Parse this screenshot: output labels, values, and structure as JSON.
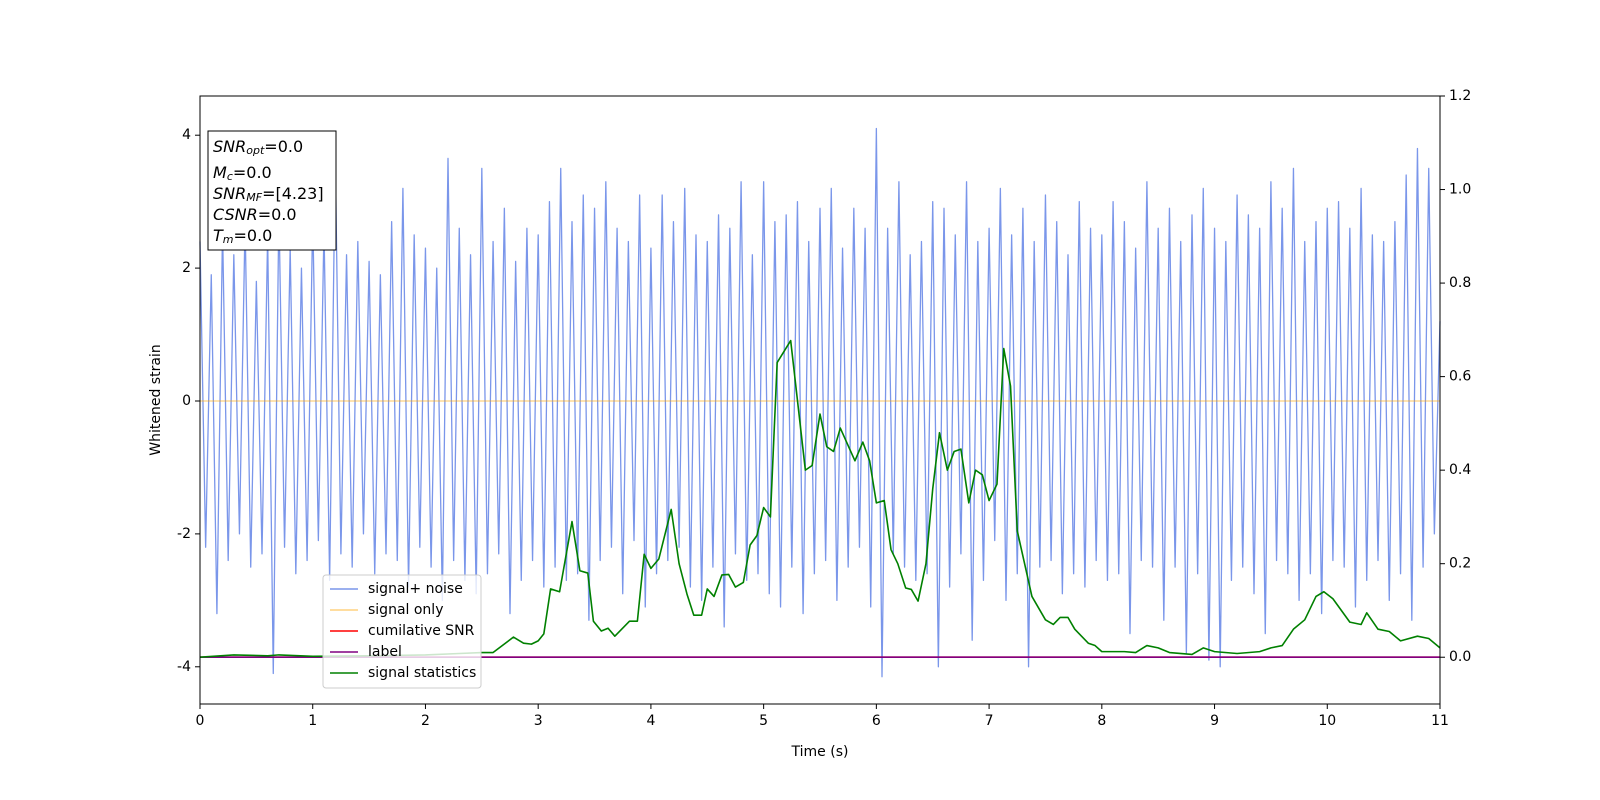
{
  "chart_data": {
    "type": "line",
    "xlabel": "Time (s)",
    "ylabel": "Whitened strain",
    "xlim": [
      0,
      11
    ],
    "xticks": [
      0,
      1,
      2,
      3,
      4,
      5,
      6,
      7,
      8,
      9,
      10,
      11
    ],
    "ylim": [
      -4.56,
      4.59
    ],
    "yticks": [
      -4,
      -2,
      0,
      2,
      4
    ],
    "y2lim": [
      -0.1,
      1.2
    ],
    "y2ticks": [
      {
        "value": 0,
        "label": "0.0"
      },
      0.2,
      0.4,
      0.6,
      0.8,
      {
        "value": 1,
        "label": "1.0"
      },
      1.2
    ],
    "legend": "lower left",
    "annotations": [
      {
        "base": "SNR",
        "sub": "opt",
        "text": "=0.0"
      },
      {
        "base": "M",
        "sub": "c",
        "text": "=0.0"
      },
      {
        "base": "SNR",
        "sub": "MF",
        "text": "=[4.23]"
      },
      {
        "base": "CSNR",
        "text": "=0.0"
      },
      {
        "base": "T",
        "sub": "m",
        "text": "=0.0"
      }
    ],
    "series": [
      {
        "name": "signal+ noise",
        "color": "#4169e1",
        "alpha": 0.7,
        "x": [
          0,
          0.05,
          0.1,
          0.15,
          0.2,
          0.25,
          0.3,
          0.35,
          0.4,
          0.45,
          0.5,
          0.55,
          0.6,
          0.65,
          0.7,
          0.75,
          0.8,
          0.85,
          0.9,
          0.95,
          1,
          1.05,
          1.1,
          1.15,
          1.2,
          1.25,
          1.3,
          1.35,
          1.4,
          1.45,
          1.5,
          1.55,
          1.6,
          1.65,
          1.7,
          1.75,
          1.8,
          1.85,
          1.9,
          1.95,
          2,
          2.05,
          2.1,
          2.15,
          2.2,
          2.25,
          2.3,
          2.35,
          2.4,
          2.45,
          2.5,
          2.55,
          2.6,
          2.65,
          2.7,
          2.75,
          2.8,
          2.85,
          2.9,
          2.95,
          3,
          3.05,
          3.1,
          3.15,
          3.2,
          3.25,
          3.3,
          3.35,
          3.4,
          3.45,
          3.5,
          3.55,
          3.6,
          3.65,
          3.7,
          3.75,
          3.8,
          3.85,
          3.9,
          3.95,
          4,
          4.05,
          4.1,
          4.15,
          4.2,
          4.25,
          4.3,
          4.35,
          4.4,
          4.45,
          4.5,
          4.55,
          4.6,
          4.65,
          4.7,
          4.75,
          4.8,
          4.85,
          4.9,
          4.95,
          5,
          5.05,
          5.1,
          5.15,
          5.2,
          5.25,
          5.3,
          5.35,
          5.4,
          5.45,
          5.5,
          5.55,
          5.6,
          5.65,
          5.7,
          5.75,
          5.8,
          5.85,
          5.9,
          5.95,
          6,
          6.05,
          6.1,
          6.15,
          6.2,
          6.25,
          6.3,
          6.35,
          6.4,
          6.45,
          6.5,
          6.55,
          6.6,
          6.65,
          6.7,
          6.75,
          6.8,
          6.85,
          6.9,
          6.95,
          7,
          7.05,
          7.1,
          7.15,
          7.2,
          7.25,
          7.3,
          7.35,
          7.4,
          7.45,
          7.5,
          7.55,
          7.6,
          7.65,
          7.7,
          7.75,
          7.8,
          7.85,
          7.9,
          7.95,
          8,
          8.05,
          8.1,
          8.15,
          8.2,
          8.25,
          8.3,
          8.35,
          8.4,
          8.45,
          8.5,
          8.55,
          8.6,
          8.65,
          8.7,
          8.75,
          8.8,
          8.85,
          8.9,
          8.95,
          9,
          9.05,
          9.1,
          9.15,
          9.2,
          9.25,
          9.3,
          9.35,
          9.4,
          9.45,
          9.5,
          9.55,
          9.6,
          9.65,
          9.7,
          9.75,
          9.8,
          9.85,
          9.9,
          9.95,
          10,
          10.05,
          10.1,
          10.15,
          10.2,
          10.25,
          10.3,
          10.35,
          10.4,
          10.45,
          10.5,
          10.55,
          10.6,
          10.65,
          10.7,
          10.75,
          10.8,
          10.85,
          10.9,
          10.95,
          11
        ],
        "values": [
          2.4,
          -2.2,
          1.9,
          -3.2,
          2.6,
          -2.4,
          2.2,
          -2.0,
          2.7,
          -2.5,
          1.8,
          -2.3,
          2.5,
          -4.1,
          2.9,
          -2.2,
          2.3,
          -2.6,
          2.0,
          -2.4,
          2.8,
          -2.1,
          2.6,
          -2.7,
          3.7,
          -2.3,
          2.2,
          -2.5,
          2.4,
          -2.0,
          2.1,
          -2.6,
          1.9,
          -2.3,
          2.7,
          -2.4,
          3.2,
          -2.8,
          2.5,
          -2.2,
          2.3,
          -2.5,
          2.0,
          -3.0,
          3.65,
          -2.4,
          2.6,
          -2.7,
          2.2,
          -2.9,
          3.5,
          -2.6,
          2.4,
          -2.3,
          2.9,
          -3.2,
          2.1,
          -2.7,
          2.6,
          -2.4,
          2.5,
          -2.8,
          3.0,
          -2.5,
          3.5,
          -2.7,
          2.7,
          -2.6,
          3.1,
          -3.3,
          2.9,
          -2.4,
          3.3,
          -2.2,
          2.6,
          -2.9,
          2.4,
          -2.1,
          3.1,
          -3.1,
          2.3,
          -2.6,
          3.1,
          -2.4,
          2.7,
          -2.2,
          3.2,
          -2.8,
          2.5,
          -3.0,
          2.4,
          -2.5,
          2.8,
          -3.4,
          2.6,
          -2.3,
          3.3,
          -2.7,
          2.2,
          -2.6,
          3.3,
          -2.9,
          2.7,
          -3.1,
          2.8,
          -2.5,
          3.0,
          -3.2,
          2.4,
          -2.6,
          2.9,
          -2.4,
          3.2,
          -3.0,
          2.3,
          -2.5,
          2.9,
          -2.2,
          2.6,
          -3.1,
          4.1,
          -4.15,
          2.6,
          -2.3,
          3.3,
          -2.5,
          2.2,
          -2.7,
          2.4,
          -2.6,
          3.0,
          -4.0,
          2.9,
          -2.8,
          2.5,
          -2.3,
          3.3,
          -3.6,
          2.4,
          -2.7,
          2.6,
          -2.1,
          3.2,
          -3.0,
          2.5,
          -2.6,
          2.9,
          -4.0,
          2.4,
          -2.5,
          3.1,
          -2.4,
          2.7,
          -2.9,
          2.2,
          -2.6,
          3.0,
          -2.8,
          2.6,
          -2.4,
          2.5,
          -2.7,
          3.0,
          -2.6,
          2.7,
          -3.5,
          2.3,
          -2.4,
          3.3,
          -2.5,
          2.6,
          -3.3,
          2.9,
          -2.5,
          2.4,
          -3.8,
          2.8,
          -2.6,
          3.2,
          -3.9,
          2.6,
          -4.0,
          2.4,
          -2.7,
          3.1,
          -2.5,
          2.8,
          -2.9,
          2.6,
          -3.5,
          3.3,
          -2.4,
          2.9,
          -2.6,
          3.5,
          -3.0,
          2.4,
          -2.6,
          2.7,
          -3.2,
          2.9,
          -2.4,
          3.0,
          -2.5,
          2.6,
          -3.1,
          3.2,
          -2.7,
          2.5,
          -2.4,
          2.4,
          -3.0,
          2.7,
          -2.6,
          3.4,
          -3.3,
          3.8,
          -2.5,
          3.5,
          -2.0,
          1.2
        ]
      },
      {
        "name": "signal only",
        "color": "#ffa500",
        "alpha": 0.5,
        "x": [
          0,
          11
        ],
        "values": [
          0,
          0
        ]
      },
      {
        "name": "cumilative SNR",
        "color": "#ff0000",
        "axis": "y2",
        "x": [
          0,
          11
        ],
        "values": [
          0,
          0
        ]
      },
      {
        "name": "label",
        "color": "#800080",
        "axis": "y2",
        "x": [
          0,
          11
        ],
        "values": [
          0,
          0
        ]
      },
      {
        "name": "signal statistics",
        "color": "#008000",
        "axis": "y2",
        "x": [
          0,
          0.3,
          0.6,
          0.7,
          1.0,
          1.5,
          2.0,
          2.3,
          2.5,
          2.6,
          2.78,
          2.87,
          2.94,
          3.0,
          3.05,
          3.11,
          3.19,
          3.3,
          3.37,
          3.44,
          3.49,
          3.56,
          3.62,
          3.68,
          3.81,
          3.88,
          3.94,
          4.0,
          4.07,
          4.18,
          4.25,
          4.32,
          4.38,
          4.45,
          4.5,
          4.56,
          4.63,
          4.69,
          4.75,
          4.82,
          4.88,
          4.94,
          5.0,
          5.06,
          5.12,
          5.24,
          5.37,
          5.43,
          5.5,
          5.56,
          5.62,
          5.68,
          5.81,
          5.88,
          5.94,
          6.0,
          6.07,
          6.13,
          6.19,
          6.26,
          6.31,
          6.37,
          6.44,
          6.5,
          6.56,
          6.63,
          6.69,
          6.75,
          6.82,
          6.88,
          6.94,
          7.0,
          7.07,
          7.13,
          7.19,
          7.25,
          7.38,
          7.5,
          7.57,
          7.63,
          7.7,
          7.76,
          7.88,
          7.94,
          8.0,
          8.2,
          8.3,
          8.4,
          8.5,
          8.6,
          8.8,
          8.9,
          9.0,
          9.2,
          9.4,
          9.5,
          9.6,
          9.7,
          9.8,
          9.9,
          9.97,
          10.05,
          10.2,
          10.3,
          10.35,
          10.45,
          10.55,
          10.65,
          10.8,
          10.9,
          11.0
        ],
        "values": [
          0,
          0.005,
          0.003,
          0.005,
          0.002,
          0.003,
          0.005,
          0.008,
          0.01,
          0.01,
          0.043,
          0.03,
          0.028,
          0.035,
          0.05,
          0.146,
          0.14,
          0.29,
          0.185,
          0.18,
          0.077,
          0.056,
          0.062,
          0.045,
          0.077,
          0.077,
          0.22,
          0.19,
          0.21,
          0.316,
          0.2,
          0.135,
          0.09,
          0.09,
          0.146,
          0.13,
          0.176,
          0.177,
          0.15,
          0.16,
          0.24,
          0.26,
          0.32,
          0.3,
          0.63,
          0.677,
          0.4,
          0.41,
          0.52,
          0.45,
          0.44,
          0.49,
          0.42,
          0.46,
          0.42,
          0.33,
          0.335,
          0.23,
          0.2,
          0.148,
          0.145,
          0.12,
          0.2,
          0.36,
          0.48,
          0.4,
          0.44,
          0.445,
          0.33,
          0.4,
          0.39,
          0.335,
          0.37,
          0.66,
          0.58,
          0.27,
          0.13,
          0.08,
          0.07,
          0.085,
          0.085,
          0.06,
          0.03,
          0.025,
          0.012,
          0.012,
          0.01,
          0.025,
          0.02,
          0.01,
          0.006,
          0.02,
          0.012,
          0.008,
          0.012,
          0.02,
          0.025,
          0.06,
          0.08,
          0.13,
          0.14,
          0.125,
          0.075,
          0.07,
          0.095,
          0.06,
          0.055,
          0.035,
          0.045,
          0.04,
          0.02
        ]
      }
    ]
  }
}
